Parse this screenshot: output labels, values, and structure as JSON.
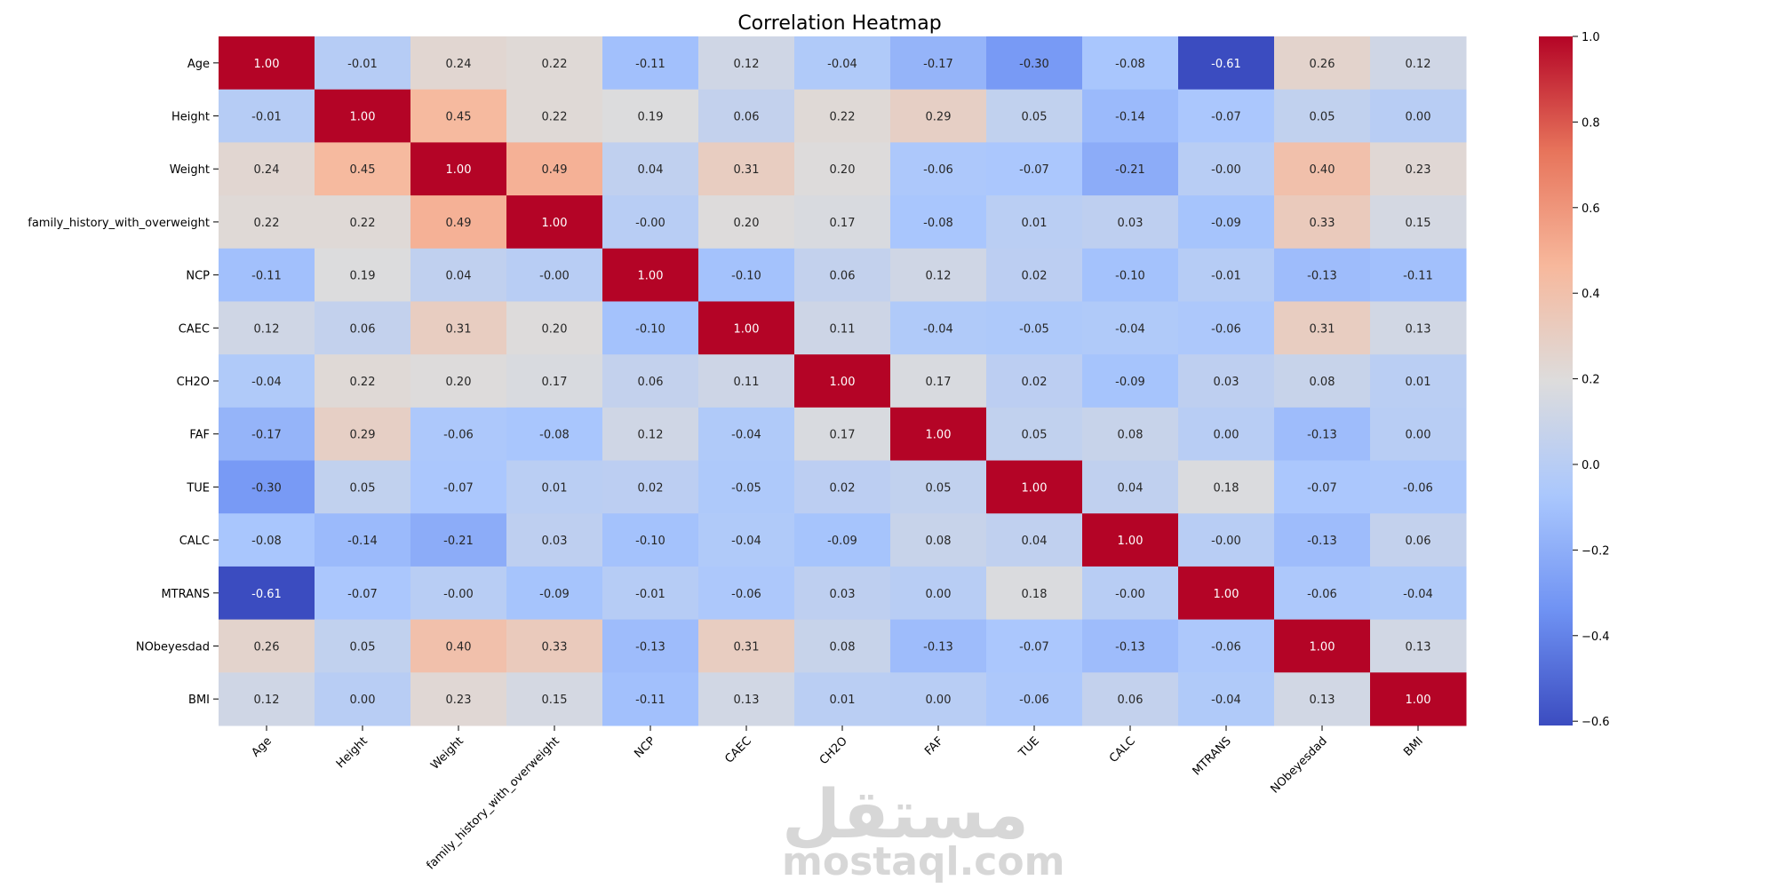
{
  "chart_data": {
    "type": "heatmap",
    "title": "Correlation Heatmap",
    "labels": [
      "Age",
      "Height",
      "Weight",
      "family_history_with_overweight",
      "NCP",
      "CAEC",
      "CH2O",
      "FAF",
      "TUE",
      "CALC",
      "MTRANS",
      "NObeyesdad",
      "BMI"
    ],
    "values": [
      [
        1.0,
        -0.01,
        0.24,
        0.22,
        -0.11,
        0.12,
        -0.04,
        -0.17,
        -0.3,
        -0.08,
        -0.61,
        0.26,
        0.12
      ],
      [
        -0.01,
        1.0,
        0.45,
        0.22,
        0.19,
        0.06,
        0.22,
        0.29,
        0.05,
        -0.14,
        -0.07,
        0.05,
        0.0
      ],
      [
        0.24,
        0.45,
        1.0,
        0.49,
        0.04,
        0.31,
        0.2,
        -0.06,
        -0.07,
        -0.21,
        -0.0,
        0.4,
        0.23
      ],
      [
        0.22,
        0.22,
        0.49,
        1.0,
        -0.0,
        0.2,
        0.17,
        -0.08,
        0.01,
        0.03,
        -0.09,
        0.33,
        0.15
      ],
      [
        -0.11,
        0.19,
        0.04,
        -0.0,
        1.0,
        -0.1,
        0.06,
        0.12,
        0.02,
        -0.1,
        -0.01,
        -0.13,
        -0.11
      ],
      [
        0.12,
        0.06,
        0.31,
        0.2,
        -0.1,
        1.0,
        0.11,
        -0.04,
        -0.05,
        -0.04,
        -0.06,
        0.31,
        0.13
      ],
      [
        -0.04,
        0.22,
        0.2,
        0.17,
        0.06,
        0.11,
        1.0,
        0.17,
        0.02,
        -0.09,
        0.03,
        0.08,
        0.01
      ],
      [
        -0.17,
        0.29,
        -0.06,
        -0.08,
        0.12,
        -0.04,
        0.17,
        1.0,
        0.05,
        0.08,
        0.0,
        -0.13,
        0.0
      ],
      [
        -0.3,
        0.05,
        -0.07,
        0.01,
        0.02,
        -0.05,
        0.02,
        0.05,
        1.0,
        0.04,
        0.18,
        -0.07,
        -0.06
      ],
      [
        -0.08,
        -0.14,
        -0.21,
        0.03,
        -0.1,
        -0.04,
        -0.09,
        0.08,
        0.04,
        1.0,
        -0.0,
        -0.13,
        0.06
      ],
      [
        -0.61,
        -0.07,
        -0.0,
        -0.09,
        -0.01,
        -0.06,
        0.03,
        0.0,
        0.18,
        -0.0,
        1.0,
        -0.06,
        -0.04
      ],
      [
        0.26,
        0.05,
        0.4,
        0.33,
        -0.13,
        0.31,
        0.08,
        -0.13,
        -0.07,
        -0.13,
        -0.06,
        1.0,
        0.13
      ],
      [
        0.12,
        0.0,
        0.23,
        0.15,
        -0.11,
        0.13,
        0.01,
        0.0,
        -0.06,
        0.06,
        -0.04,
        0.13,
        1.0
      ]
    ],
    "colorbar": {
      "min": -0.61,
      "max": 1.0,
      "ticks": [
        1.0,
        0.8,
        0.6,
        0.4,
        0.2,
        0.0,
        -0.2,
        -0.4,
        -0.6
      ],
      "tick_labels": [
        "1.0",
        "0.8",
        "0.6",
        "0.4",
        "0.2",
        "0.0",
        "−0.2",
        "−0.4",
        "−0.6"
      ],
      "colormap": "coolwarm",
      "colormap_stops": [
        "#3b4cc0",
        "#6f92f3",
        "#aac7fd",
        "#dddcdc",
        "#f7b89c",
        "#e7745b",
        "#b40426"
      ]
    }
  },
  "watermark": {
    "arabic": "مستقل",
    "latin": "mostaql.com"
  }
}
